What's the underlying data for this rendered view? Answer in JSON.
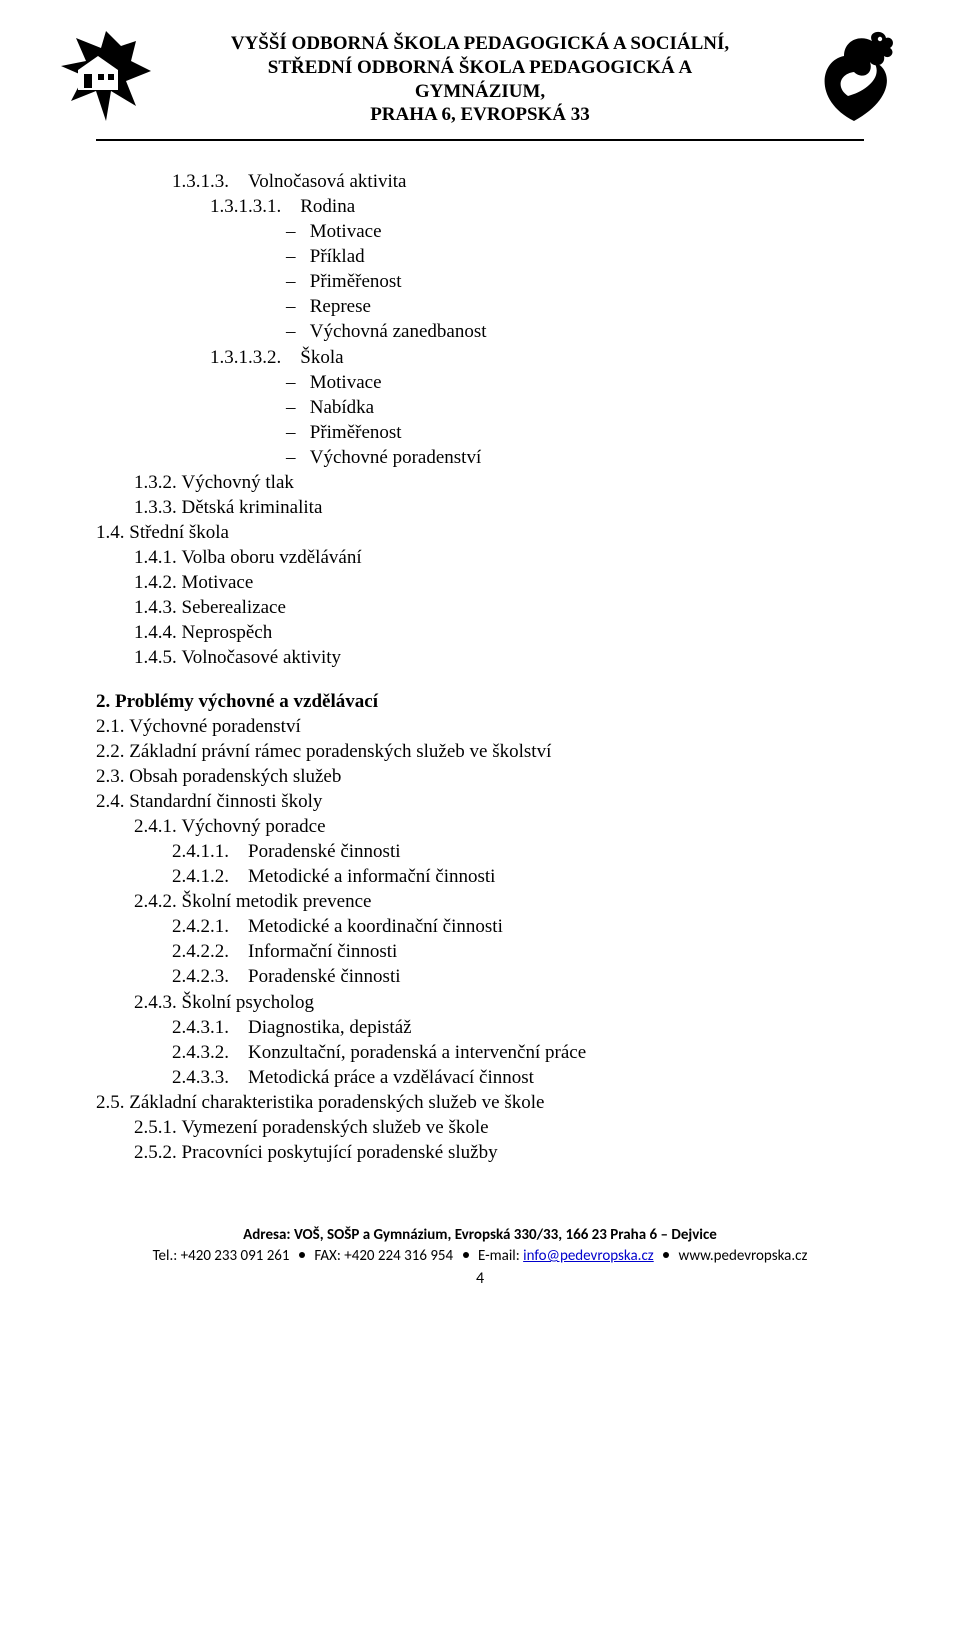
{
  "header": {
    "line1": "VYŠŠÍ ODBORNÁ ŠKOLA PEDAGOGICKÁ A SOCIÁLNÍ,",
    "line2": "STŘEDNÍ ODBORNÁ ŠKOLA PEDAGOGICKÁ A GYMNÁZIUM,",
    "line3": "PRAHA 6, EVROPSKÁ 33"
  },
  "outline": [
    {
      "cls": "c2 row",
      "num": "1.3.1.3.    ",
      "txt": "Volnočasová aktivita"
    },
    {
      "cls": "c3 row",
      "num": "1.3.1.3.1.    ",
      "txt": "Rodina"
    },
    {
      "cls": "c4 dash",
      "txt": "Motivace"
    },
    {
      "cls": "c4 dash",
      "txt": "Příklad"
    },
    {
      "cls": "c4 dash",
      "txt": "Přiměřenost"
    },
    {
      "cls": "c4 dash",
      "txt": "Represe"
    },
    {
      "cls": "c4 dash",
      "txt": "Výchovná zanedbanost"
    },
    {
      "cls": "c3 row",
      "num": "1.3.1.3.2.    ",
      "txt": "Škola"
    },
    {
      "cls": "c4 dash",
      "txt": "Motivace"
    },
    {
      "cls": "c4 dash",
      "txt": "Nabídka"
    },
    {
      "cls": "c4 dash",
      "txt": "Přiměřenost"
    },
    {
      "cls": "c4 dash",
      "txt": "Výchovné poradenství"
    },
    {
      "cls": "c1 row",
      "num": "1.3.2. ",
      "txt": "Výchovný tlak"
    },
    {
      "cls": "c1 row",
      "num": "1.3.3. ",
      "txt": "Dětská kriminalita"
    },
    {
      "cls": "c0 row",
      "num": "1.4. ",
      "txt": "Střední škola"
    },
    {
      "cls": "c1 row",
      "num": "1.4.1. ",
      "txt": "Volba oboru vzdělávání"
    },
    {
      "cls": "c1 row",
      "num": "1.4.2. ",
      "txt": "Motivace"
    },
    {
      "cls": "c1 row",
      "num": "1.4.3. ",
      "txt": "Seberealizace"
    },
    {
      "cls": "c1 row",
      "num": "1.4.4. ",
      "txt": "Neprospěch"
    },
    {
      "cls": "c1 row",
      "num": "1.4.5. ",
      "txt": "Volnočasové aktivity"
    }
  ],
  "section2": {
    "heading_num": "2. ",
    "heading_txt": "Problémy výchovné a vzdělávací",
    "items": [
      {
        "cls": "c0 row",
        "num": "2.1. ",
        "txt": "Výchovné poradenství"
      },
      {
        "cls": "c0 row",
        "num": "2.2. ",
        "txt": "Základní právní rámec poradenských služeb ve školství"
      },
      {
        "cls": "c0 row",
        "num": "2.3. ",
        "txt": "Obsah poradenských služeb"
      },
      {
        "cls": "c0 row",
        "num": "2.4. ",
        "txt": "Standardní činnosti školy"
      },
      {
        "cls": "c1 row",
        "num": "2.4.1. ",
        "txt": "Výchovný poradce"
      },
      {
        "cls": "c2 row",
        "num": "2.4.1.1.    ",
        "txt": "Poradenské činnosti"
      },
      {
        "cls": "c2 row",
        "num": "2.4.1.2.    ",
        "txt": "Metodické a informační činnosti"
      },
      {
        "cls": "c1 row",
        "num": "2.4.2. ",
        "txt": "Školní metodik prevence"
      },
      {
        "cls": "c2 row",
        "num": "2.4.2.1.    ",
        "txt": "Metodické a koordinační činnosti"
      },
      {
        "cls": "c2 row",
        "num": "2.4.2.2.    ",
        "txt": "Informační činnosti"
      },
      {
        "cls": "c2 row",
        "num": "2.4.2.3.    ",
        "txt": "Poradenské činnosti"
      },
      {
        "cls": "c1 row",
        "num": "2.4.3. ",
        "txt": "Školní psycholog"
      },
      {
        "cls": "c2 row",
        "num": "2.4.3.1.    ",
        "txt": "Diagnostika, depistáž"
      },
      {
        "cls": "c2 row",
        "num": "2.4.3.2.    ",
        "txt": "Konzultační, poradenská a intervenční práce"
      },
      {
        "cls": "c2 row",
        "num": "2.4.3.3.    ",
        "txt": "Metodická práce a vzdělávací činnost"
      },
      {
        "cls": "c0 row",
        "num": "2.5. ",
        "txt": "Základní charakteristika poradenských služeb ve škole"
      },
      {
        "cls": "c1 row",
        "num": "2.5.1. ",
        "txt": "Vymezení poradenských služeb ve škole"
      },
      {
        "cls": "c1 row",
        "num": "2.5.2. ",
        "txt": "Pracovníci poskytující poradenské služby"
      }
    ]
  },
  "footer": {
    "address_label": "Adresa: ",
    "address": "VOŠ, SOŠP a Gymnázium, Evropská 330/33, 166 23 Praha 6 – Dejvice",
    "tel_label": "Tel.: ",
    "tel": "+420 233 091 261",
    "fax_label": "FAX: ",
    "fax": "+420 224 316 954",
    "email_label": "E-mail: ",
    "email": "info@pedevropska.cz",
    "www": "www.pedevropska.cz",
    "pagenum": "4"
  }
}
